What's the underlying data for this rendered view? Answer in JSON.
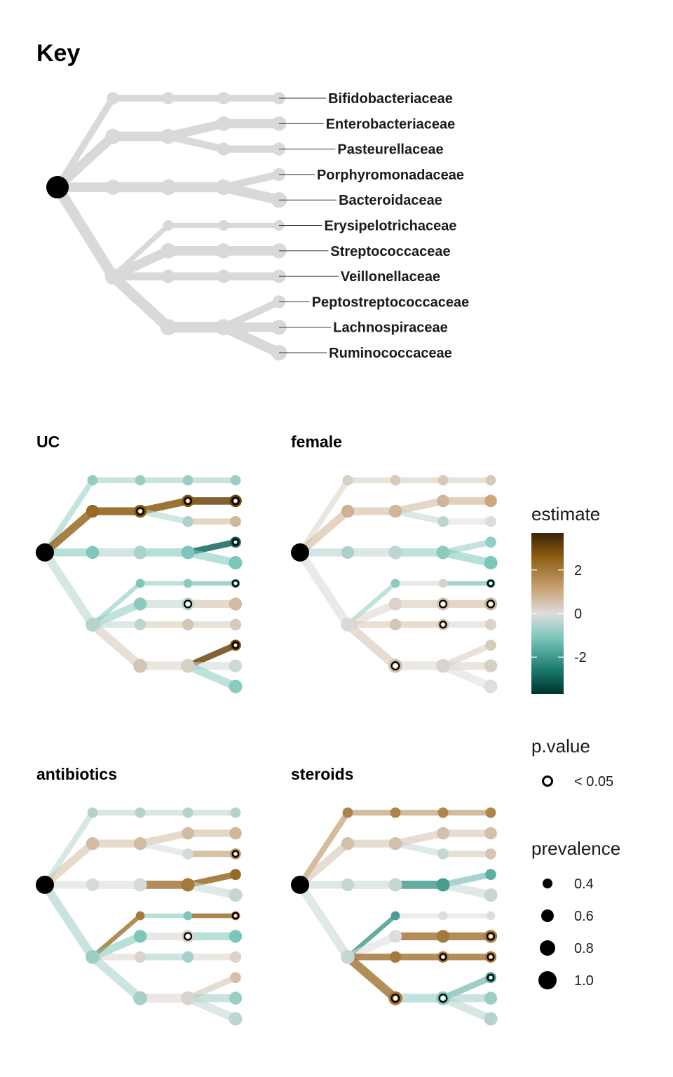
{
  "chart_data": {
    "type": "tree",
    "key": {
      "title": "Key",
      "leaves": [
        "Bifidobacteriaceae",
        "Enterobacteriaceae",
        "Pasteurellaceae",
        "Porphyromonadaceae",
        "Bacteroidaceae",
        "Erysipelotrichaceae",
        "Streptococcaceae",
        "Veillonellaceae",
        "Peptostreptococcaceae",
        "Lachnospiraceae",
        "Ruminococcaceae"
      ]
    },
    "panels": [
      {
        "title": "UC",
        "estimates": {
          "p1": -0.9,
          "p2": 2.3,
          "p3": -1.2,
          "p4": -0.5,
          "c1": -0.8,
          "c2": 2.6,
          "c3": -0.6,
          "c4": -1.2,
          "c5": -1.0,
          "c6": -0.4,
          "c7": 0.5,
          "c8": 0.3,
          "c9": -0.4,
          "o1": -0.8,
          "o2": 2.6,
          "o3": -0.6,
          "o4": -1.2,
          "o5": -1.0,
          "o6": -0.4,
          "o7": 0.5,
          "o8": 0.3,
          "o9": -0.4,
          "l1": -0.8,
          "l2": 3.0,
          "l3": 0.8,
          "l4": -2.8,
          "l5": -1.2,
          "l6": -1.6,
          "l7": 0.7,
          "l8": 0.4,
          "l9": 3.0,
          "l10": -0.2,
          "l11": -1.0
        },
        "significant": [
          "c2",
          "o2",
          "l2",
          "l4",
          "l6",
          "o6",
          "l9"
        ]
      },
      {
        "title": "female",
        "estimates": {
          "p1": 0.3,
          "p2": 0.9,
          "p3": -0.6,
          "p4": 0.1,
          "c1": 0.4,
          "c2": 0.8,
          "c3": -0.4,
          "c4": -1.0,
          "c5": 0.2,
          "c6": 0.5,
          "c7": 0.6,
          "c8": 0.2,
          "c9": 0.2,
          "o1": 0.4,
          "o2": 0.8,
          "o3": -0.4,
          "o4": -1.0,
          "o5": 0.2,
          "o6": 0.5,
          "o7": 0.6,
          "o8": 0.2,
          "o9": 0.2,
          "l1": 0.4,
          "l2": 1.1,
          "l3": 0.0,
          "l4": -0.9,
          "l5": -1.2,
          "l6": -1.6,
          "l7": 0.8,
          "l8": 0.2,
          "l9": 0.4,
          "l10": 0.3,
          "l11": 0.0
        },
        "significant": [
          "l6",
          "o6",
          "l7",
          "o7",
          "c7"
        ]
      },
      {
        "title": "antibiotics",
        "estimates": {
          "p1": -0.5,
          "p2": 0.7,
          "p3": -0.1,
          "p4": -0.8,
          "c1": -0.5,
          "c2": 0.7,
          "c3": -0.1,
          "c4": 2.0,
          "c5": -1.2,
          "c6": 0.2,
          "c7": -0.7,
          "c8": 0.2,
          "c9": -0.5,
          "o1": -0.5,
          "o2": 0.7,
          "o3": -0.1,
          "o4": 2.0,
          "o5": -1.2,
          "o6": 0.2,
          "o7": -0.7,
          "o8": 0.2,
          "o9": -0.5,
          "l1": -0.5,
          "l2": 0.8,
          "l3": 1.6,
          "l4": 2.3,
          "l5": -0.3,
          "l6": 2.2,
          "l7": -1.2,
          "l8": 0.2,
          "l9": 0.6,
          "l10": -0.8,
          "l11": -0.4
        },
        "significant": [
          "l3",
          "l6",
          "o6"
        ]
      },
      {
        "title": "steroids",
        "estimates": {
          "p1": 1.8,
          "p2": 0.6,
          "p3": -0.3,
          "p4": -0.3,
          "c1": 1.8,
          "c2": 0.6,
          "c3": -0.3,
          "c4": -1.9,
          "c5": 0.0,
          "c6": 2.0,
          "c7": 2.0,
          "c8": -1.0,
          "c9": -0.5,
          "o1": 1.8,
          "o2": 0.6,
          "o3": -0.3,
          "o4": -1.9,
          "o5": 0.0,
          "o6": 2.0,
          "o7": 2.0,
          "o8": -1.0,
          "o9": -0.5,
          "l1": 1.8,
          "l2": 0.6,
          "l3": 0.5,
          "l4": -1.6,
          "l5": -0.3,
          "l6": 0.0,
          "l7": 2.0,
          "l8": 2.0,
          "l9": -1.8,
          "l10": -0.8,
          "l11": -0.5
        },
        "significant": [
          "c7",
          "o7",
          "l7",
          "c8",
          "o8",
          "l8",
          "c9",
          "o9",
          "l9"
        ]
      }
    ],
    "legend": {
      "estimate": {
        "title": "estimate",
        "ticks": [
          2,
          0,
          -2
        ],
        "range": [
          -3.7,
          3.7
        ]
      },
      "pvalue": {
        "title": "p.value",
        "label": "< 0.05"
      },
      "prevalence": {
        "title": "prevalence",
        "values": [
          0.4,
          0.6,
          0.8,
          1.0
        ]
      }
    }
  }
}
